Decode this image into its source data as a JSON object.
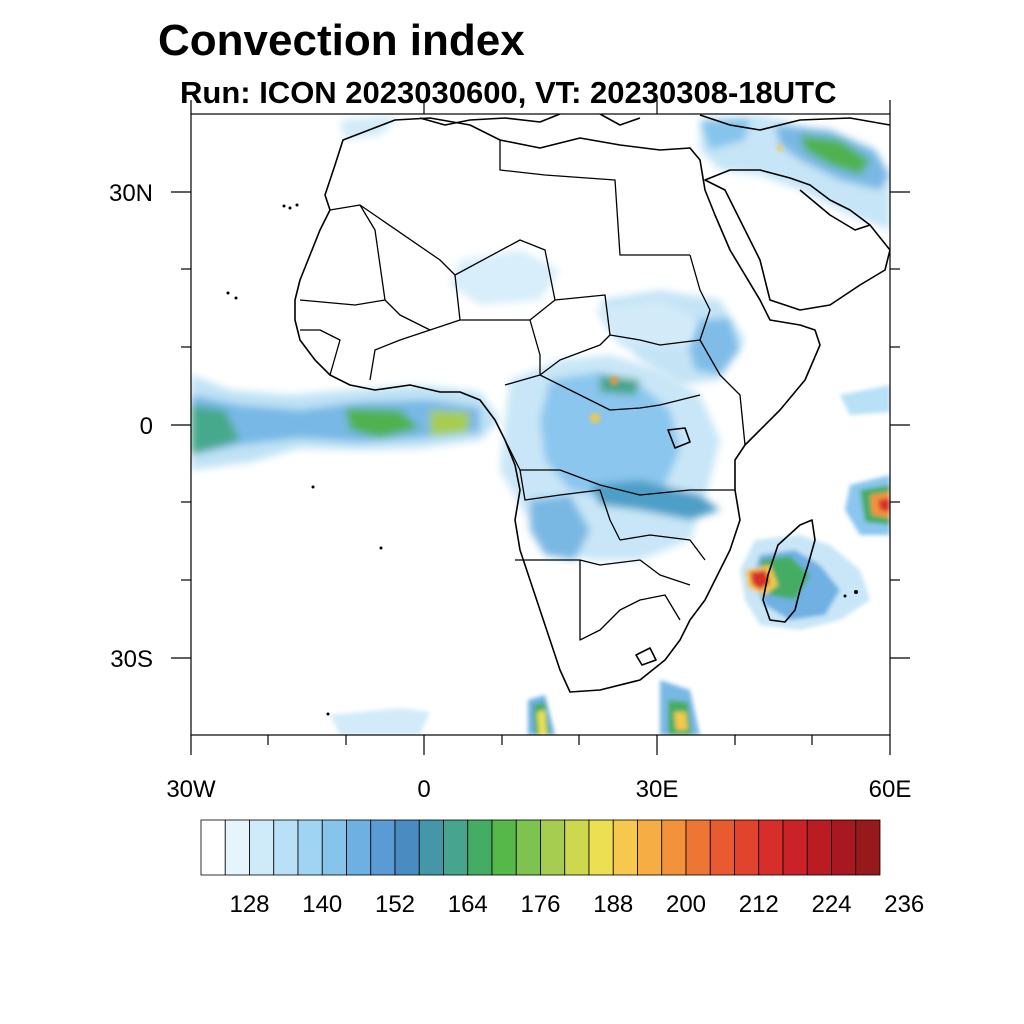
{
  "title": "Convection index",
  "subtitle": "Run: ICON 2023030600,  VT: 20230308-18UTC",
  "axes": {
    "x_ticks": [
      {
        "label": "30W",
        "lon": -30
      },
      {
        "label": "0",
        "lon": 0
      },
      {
        "label": "30E",
        "lon": 30
      },
      {
        "label": "60E",
        "lon": 60
      }
    ],
    "y_ticks": [
      {
        "label": "30N",
        "lat": 30
      },
      {
        "label": "0",
        "lat": 0
      },
      {
        "label": "30S",
        "lat": -30
      }
    ],
    "lon_range": [
      -30,
      60
    ],
    "lat_range": [
      -40,
      40
    ]
  },
  "colorbar": {
    "labels": [
      "128",
      "140",
      "152",
      "164",
      "176",
      "188",
      "200",
      "212",
      "224",
      "236"
    ],
    "colors": [
      "#ffffff",
      "#e6f4fb",
      "#cfeaf8",
      "#b8e0f6",
      "#9fd4f3",
      "#86c4ec",
      "#6fb0e2",
      "#5a9bd5",
      "#4a8cc2",
      "#4596a8",
      "#46a58c",
      "#45ad63",
      "#56b849",
      "#7ec250",
      "#a6cd4f",
      "#cdd84e",
      "#ece052",
      "#f6c94e",
      "#f5ad44",
      "#f2933c",
      "#ee7634",
      "#e85a2f",
      "#e2432c",
      "#d82e2a",
      "#cb2228",
      "#bb1c24",
      "#a81820",
      "#961a1c"
    ]
  },
  "colors": {
    "frame": "#000000",
    "coastline": "#000000"
  }
}
